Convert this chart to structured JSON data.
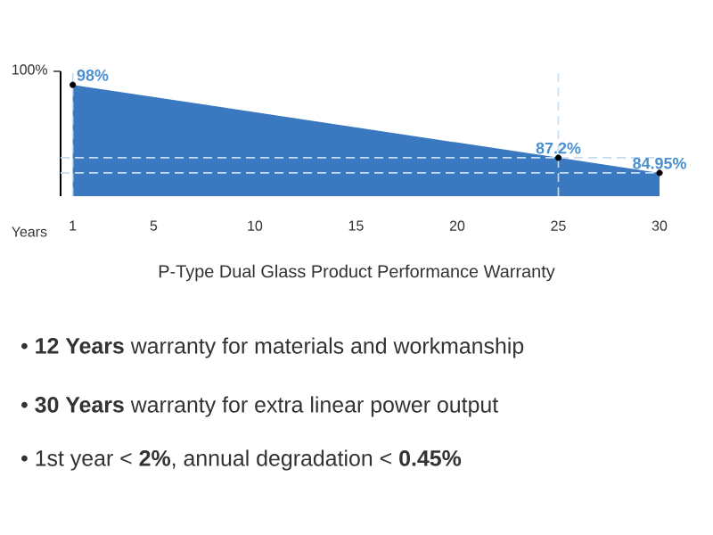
{
  "chart_data": {
    "type": "area",
    "title": "P-Type Dual Glass Product Performance Warranty",
    "xlabel": "Years",
    "x": [
      1,
      25,
      30
    ],
    "values": [
      98,
      87.2,
      84.95
    ],
    "value_labels": [
      "98%",
      "87.2%",
      "84.95%"
    ],
    "color": "#3a78c0",
    "marker": "circle",
    "xlim": [
      0.4,
      30
    ],
    "xticks": [
      1,
      5,
      10,
      15,
      20,
      25,
      30
    ],
    "ylim": [
      81.5,
      100
    ],
    "ref_lines": [
      {
        "axis": "x",
        "value": 1,
        "color": "#c8dcf0",
        "line_style": "dashed"
      },
      {
        "axis": "x",
        "value": 25,
        "color": "#c8dcf0",
        "line_style": "dashed"
      },
      {
        "axis": "y",
        "value": 87.2,
        "color": "#c8dcf0",
        "line_style": "dashed"
      },
      {
        "axis": "y",
        "value": 84.95,
        "color": "#c8dcf0",
        "line_style": "dashed"
      }
    ],
    "annotations": [
      "100%",
      "• **12 Years** warranty for materials and workmanship",
      "• **30 Years** warranty for extra linear power output",
      "• 1st year < **2%**, annual degradation < **0.45%**"
    ]
  }
}
